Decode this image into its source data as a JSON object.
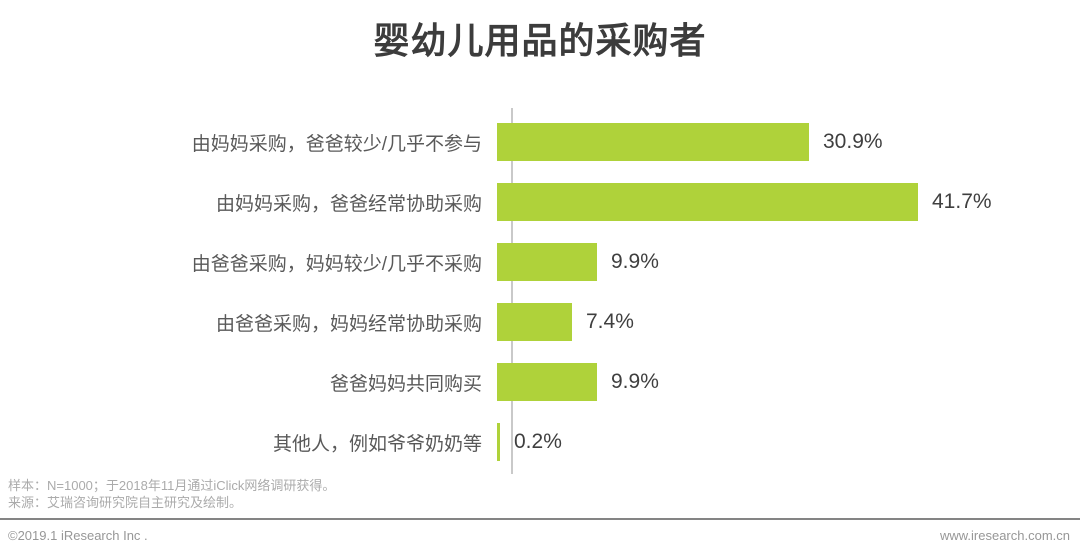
{
  "title": "婴幼儿用品的采购者",
  "chart_data": {
    "type": "bar",
    "orientation": "horizontal",
    "title": "婴幼儿用品的采购者",
    "categories": [
      "由妈妈采购，爸爸较少/几乎不参与",
      "由妈妈采购，爸爸经常协助采购",
      "由爸爸采购，妈妈较少/几乎不采购",
      "由爸爸采购，妈妈经常协助采购",
      "爸爸妈妈共同购买",
      "其他人，例如爷爷奶奶等"
    ],
    "values": [
      30.9,
      41.7,
      9.9,
      7.4,
      9.9,
      0.2
    ],
    "value_labels": [
      "30.9%",
      "41.7%",
      "9.9%",
      "7.4%",
      "9.9%",
      "0.2%"
    ],
    "xlabel": "",
    "ylabel": "",
    "xlim": [
      0,
      45
    ],
    "grid": false,
    "legend": false,
    "bar_color": "#afd23a",
    "axis_color": "#c9c9c9"
  },
  "notes": {
    "sample": "样本：N=1000；于2018年11月通过iClick网络调研获得。",
    "source": "来源：艾瑞咨询研究院自主研究及绘制。"
  },
  "footer": {
    "left": "©2019.1 iResearch Inc .",
    "right": "www.iresearch.com.cn"
  }
}
